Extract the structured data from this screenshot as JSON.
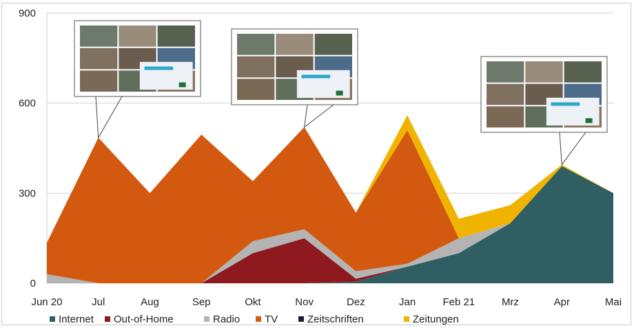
{
  "chart_data": {
    "type": "area",
    "stacked": true,
    "categories": [
      "Jun 20",
      "Jul",
      "Aug",
      "Sep",
      "Okt",
      "Nov",
      "Dez",
      "Jan",
      "Feb 21",
      "Mrz",
      "Apr",
      "Mai"
    ],
    "ylim": [
      0,
      900
    ],
    "yticks": [
      "0",
      "300",
      "600",
      "900"
    ],
    "grid": true,
    "legend_position": "bottom",
    "series": [
      {
        "name": "Internet",
        "color": "#2f5f63",
        "values": [
          0,
          0,
          0,
          0,
          0,
          0,
          5,
          55,
          100,
          200,
          390,
          300
        ]
      },
      {
        "name": "Out-of-Home",
        "color": "#8e1a1f",
        "values": [
          0,
          0,
          0,
          0,
          100,
          150,
          10,
          0,
          0,
          0,
          0,
          0
        ]
      },
      {
        "name": "Radio",
        "color": "#b4b4b4",
        "values": [
          30,
          0,
          0,
          0,
          40,
          30,
          25,
          10,
          50,
          0,
          0,
          0
        ]
      },
      {
        "name": "TV",
        "color": "#d2590f",
        "values": [
          105,
          485,
          300,
          495,
          200,
          340,
          195,
          445,
          0,
          0,
          0,
          0
        ]
      },
      {
        "name": "Zeitschriften",
        "color": "#1c1f33",
        "values": [
          0,
          0,
          0,
          0,
          0,
          0,
          0,
          0,
          0,
          0,
          0,
          0
        ]
      },
      {
        "name": "Zeitungen",
        "color": "#f0b400",
        "values": [
          0,
          0,
          0,
          0,
          0,
          0,
          0,
          50,
          65,
          60,
          5,
          0
        ]
      }
    ],
    "annotations": [
      {
        "label": "creative-thumbnail-jul",
        "at_category": "Jul"
      },
      {
        "label": "creative-thumbnail-nov",
        "at_category": "Nov"
      },
      {
        "label": "creative-thumbnail-apr",
        "at_category": "Apr"
      }
    ]
  }
}
